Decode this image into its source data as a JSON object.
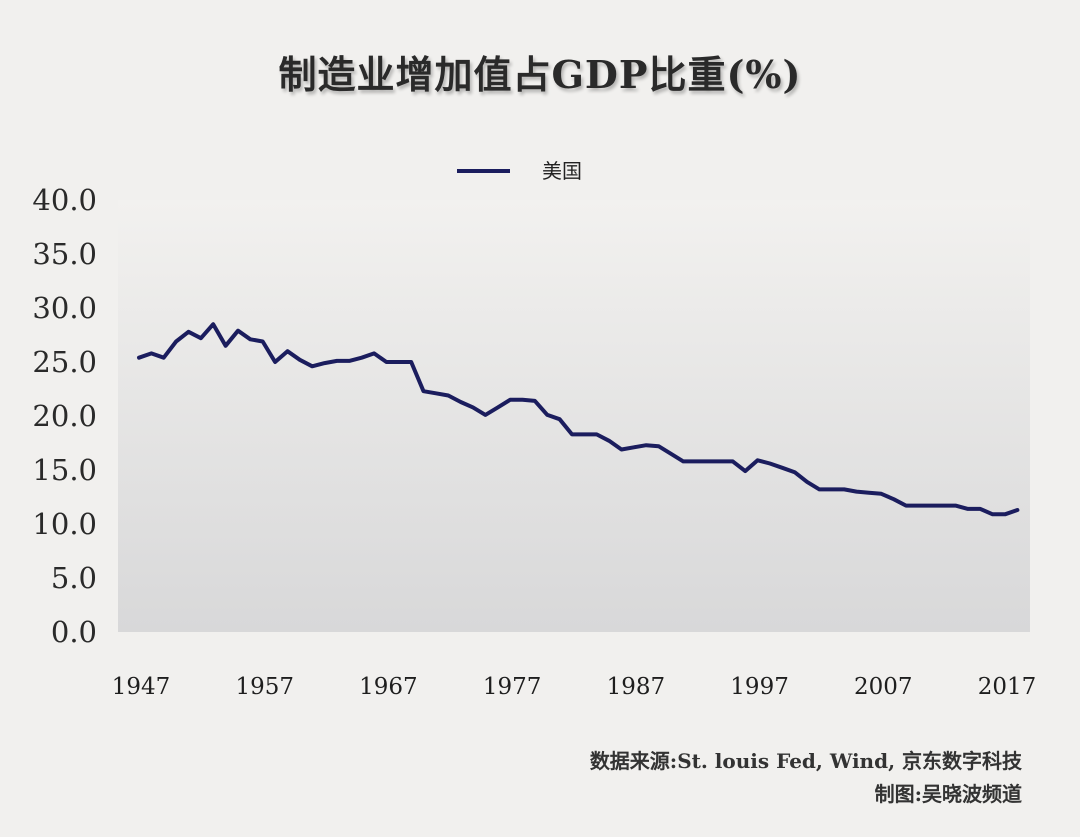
{
  "title": "制造业增加值占GDP比重(%)",
  "chart_data": {
    "type": "line",
    "title": "制造业增加值占GDP比重(%)",
    "legend_position": "top-center",
    "grid": false,
    "ylim": [
      0,
      40
    ],
    "xlim": [
      1947,
      2018
    ],
    "y_ticks": [
      "0.0",
      "5.0",
      "10.0",
      "15.0",
      "20.0",
      "25.0",
      "30.0",
      "35.0",
      "40.0"
    ],
    "x_ticks": [
      "1947",
      "1957",
      "1967",
      "1977",
      "1987",
      "1997",
      "2007",
      "2017"
    ],
    "series": [
      {
        "name": "美国",
        "color": "#1b1d5e",
        "x": [
          1947,
          1948,
          1949,
          1950,
          1951,
          1952,
          1953,
          1954,
          1955,
          1956,
          1957,
          1958,
          1959,
          1960,
          1961,
          1962,
          1963,
          1964,
          1965,
          1966,
          1967,
          1968,
          1969,
          1970,
          1971,
          1972,
          1973,
          1974,
          1975,
          1976,
          1977,
          1978,
          1979,
          1980,
          1981,
          1982,
          1983,
          1984,
          1985,
          1986,
          1987,
          1988,
          1989,
          1990,
          1991,
          1992,
          1993,
          1994,
          1995,
          1996,
          1997,
          1998,
          1999,
          2000,
          2001,
          2002,
          2003,
          2004,
          2005,
          2006,
          2007,
          2008,
          2009,
          2010,
          2011,
          2012,
          2013,
          2014,
          2015,
          2016,
          2017,
          2018
        ],
        "values": [
          25.4,
          25.8,
          25.4,
          26.9,
          27.8,
          27.2,
          28.5,
          26.5,
          27.9,
          27.1,
          26.9,
          25.0,
          26.0,
          25.2,
          24.6,
          24.9,
          25.1,
          25.1,
          25.4,
          25.8,
          25.0,
          25.0,
          25.0,
          22.3,
          22.1,
          21.9,
          21.3,
          20.8,
          20.1,
          20.8,
          21.5,
          21.5,
          21.4,
          20.1,
          19.7,
          18.3,
          18.3,
          18.3,
          17.7,
          16.9,
          17.1,
          17.3,
          17.2,
          16.5,
          15.8,
          15.8,
          15.8,
          15.8,
          15.8,
          14.9,
          15.9,
          15.6,
          15.2,
          14.8,
          13.9,
          13.2,
          13.2,
          13.2,
          13.0,
          12.9,
          12.8,
          12.3,
          11.7,
          11.7,
          11.7,
          11.7,
          11.7,
          11.4,
          11.4,
          10.9,
          10.9,
          11.3
        ]
      }
    ]
  },
  "source": "数据来源:St. louis Fed, Wind, 京东数字科技",
  "credit": "制图:吴晓波频道"
}
